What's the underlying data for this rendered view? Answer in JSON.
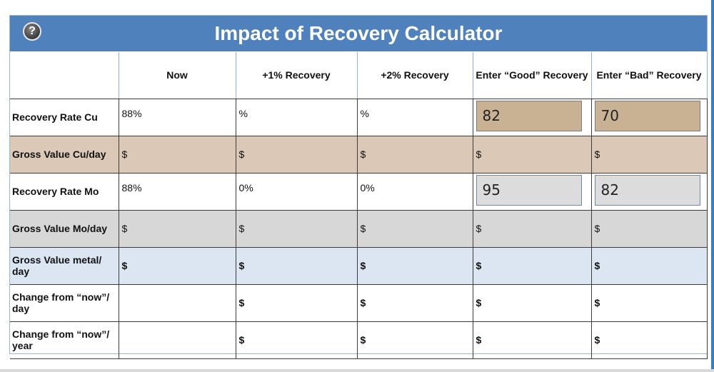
{
  "header": {
    "title": "Impact of Recovery Calculator",
    "help_label": "?"
  },
  "columns": [
    "",
    "Now",
    "+1% Recovery",
    "+2% Recovery",
    "Enter “Good” Recovery",
    "Enter “Bad” Recovery"
  ],
  "rows": {
    "recovery_cu": {
      "label": "Recovery Rate Cu",
      "now": "88%",
      "plus1": "%",
      "plus2": "%",
      "good_input": "82",
      "bad_input": "70"
    },
    "gross_cu": {
      "label": "Gross Value Cu/day",
      "now": "$",
      "plus1": "$",
      "plus2": "$",
      "good": "$",
      "bad": "$"
    },
    "recovery_mo": {
      "label": "Recovery Rate Mo",
      "now": "88%",
      "plus1": "0%",
      "plus2": "0%",
      "good_input": "95",
      "bad_input": "82"
    },
    "gross_mo": {
      "label": "Gross Value Mo/day",
      "now": "$",
      "plus1": "$",
      "plus2": "$",
      "good": "$",
      "bad": "$"
    },
    "gross_metal": {
      "label": "Gross Value metal/ day",
      "now": "$",
      "plus1": "$",
      "plus2": "$",
      "good": "$",
      "bad": "$"
    },
    "change_day": {
      "label": "Change from “now”/ day",
      "now": "",
      "plus1": "$",
      "plus2": "$",
      "good": "$",
      "bad": "$"
    },
    "change_year": {
      "label": "Change from “now”/ year",
      "now": "",
      "plus1": "$",
      "plus2": "$",
      "good": "$",
      "bad": "$"
    }
  }
}
